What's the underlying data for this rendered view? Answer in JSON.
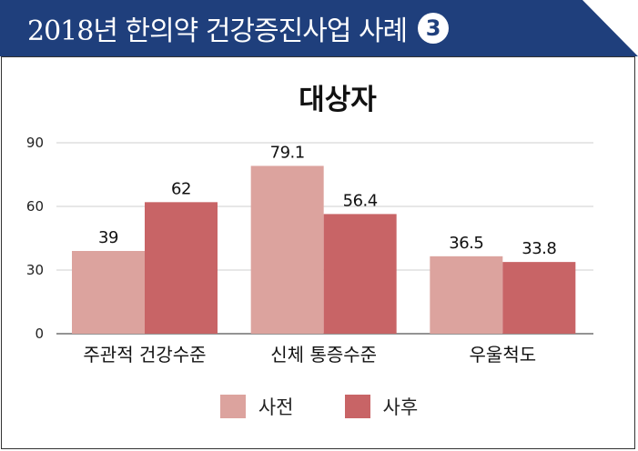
{
  "header": {
    "title": "2018년 한의약 건강증진사업 사례",
    "badge": "3"
  },
  "colors": {
    "banner": "#1f3f7c",
    "before": "#dca39e",
    "after": "#c86466"
  },
  "chart_data": {
    "type": "bar",
    "title": "대상자",
    "categories": [
      "주관적 건강수준",
      "신체 통증수준",
      "우울척도"
    ],
    "series": [
      {
        "name": "사전",
        "values": [
          39,
          79.1,
          36.5
        ]
      },
      {
        "name": "사후",
        "values": [
          62,
          56.4,
          33.8
        ]
      }
    ],
    "value_labels": [
      [
        "39",
        "79.1",
        "36.5"
      ],
      [
        "62",
        "56.4",
        "33.8"
      ]
    ],
    "ylim": [
      0,
      90
    ],
    "yticks": [
      0,
      30,
      60,
      90
    ],
    "grid": true,
    "legend": "bottom"
  }
}
